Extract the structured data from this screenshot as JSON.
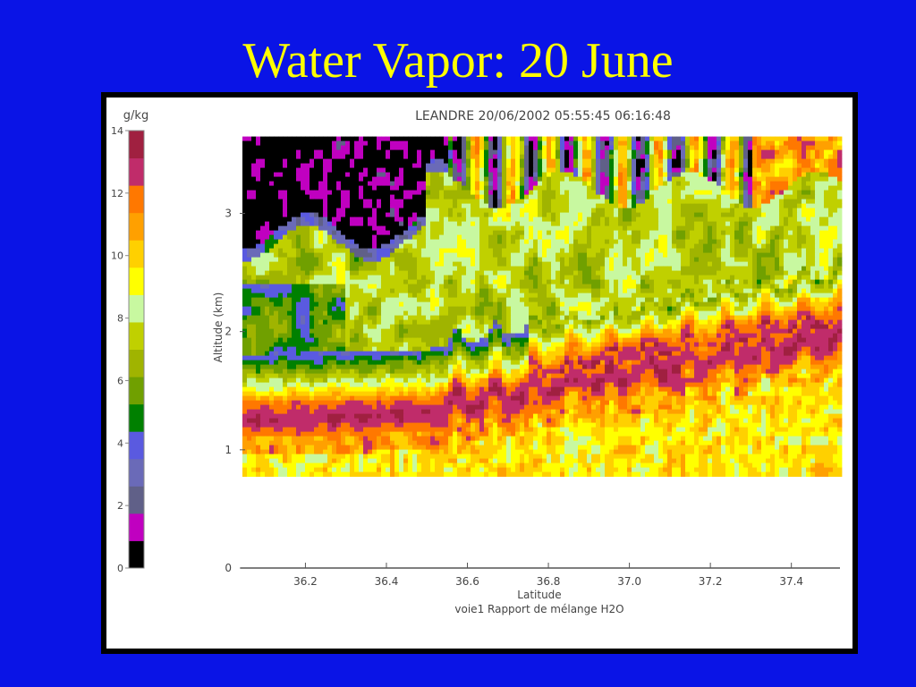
{
  "slide": {
    "title": "Water Vapor: 20 June"
  },
  "chart_data": {
    "type": "heatmap",
    "title": "LEANDRE 20/06/2002 05:55:45 06:16:48",
    "xlabel": "Latitude",
    "subtitle": "voie1 Rapport de mélange H2O",
    "ylabel": "Altitude (km)",
    "xlim": [
      36.04,
      37.52
    ],
    "ylim": [
      0,
      3.7
    ],
    "data_altitude_range_km": [
      0.8,
      3.65
    ],
    "x_ticks": [
      "36.2",
      "36.4",
      "36.6",
      "36.8",
      "37.0",
      "37.2",
      "37.4"
    ],
    "y_ticks": [
      "0",
      "1",
      "2",
      "3"
    ],
    "colorbar": {
      "unit": "g/kg",
      "range": [
        0,
        14
      ],
      "ticks": [
        "0",
        "2",
        "4",
        "6",
        "8",
        "10",
        "12",
        "14"
      ],
      "colors": [
        "#000000",
        "#c000c0",
        "#606088",
        "#6a6ab8",
        "#5a5ae0",
        "#008000",
        "#70a000",
        "#a0b400",
        "#c0d000",
        "#c8f8a0",
        "#ffff00",
        "#ffd000",
        "#ffa000",
        "#ff7800",
        "#c02c6a",
        "#a02040"
      ],
      "level_step": 0.875
    },
    "layers": [
      {
        "feature": "moist boundary layer peak",
        "altitude_km_at_36.1": 1.25,
        "altitude_km_at_36.5": 1.3,
        "altitude_km_at_37.4": 1.9,
        "value_gkg": 13
      },
      {
        "feature": "dry layer above boundary layer",
        "altitude_km": [
          1.5,
          2.2
        ],
        "value_gkg": 3.5
      },
      {
        "feature": "mid-level moist band",
        "altitude_km": [
          2.3,
          3.0
        ],
        "value_gkg": 8
      },
      {
        "feature": "very dry upper layer (west)",
        "altitude_km": [
          2.8,
          3.65
        ],
        "value_gkg": 0.5
      },
      {
        "feature": "upper moist pockets (east)",
        "altitude_km": [
          3.2,
          3.6
        ],
        "value_gkg": 13
      }
    ]
  }
}
